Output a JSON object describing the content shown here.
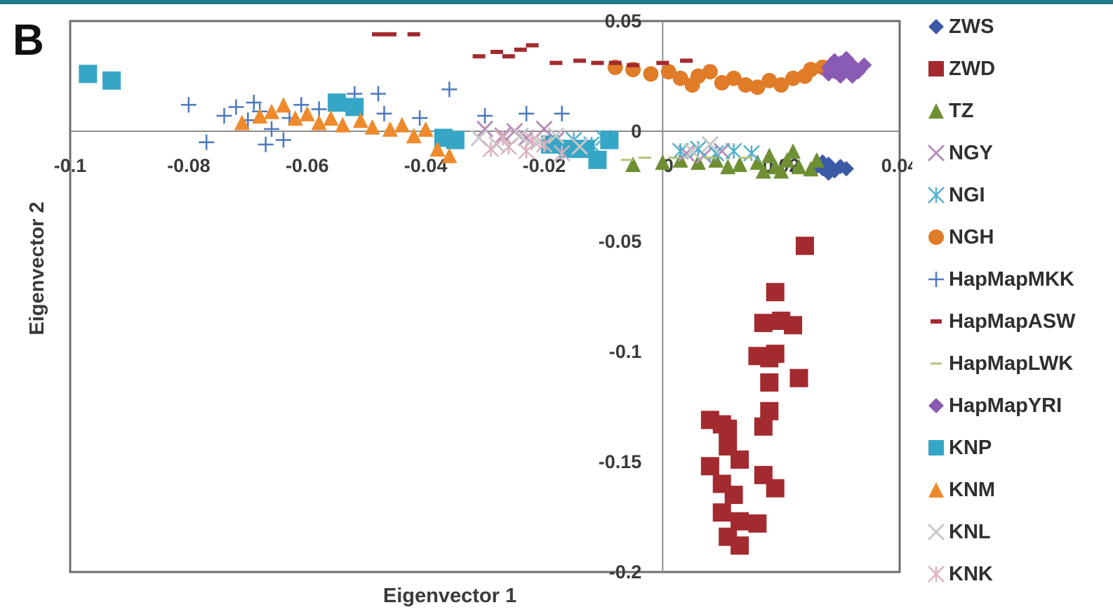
{
  "panel_label": "B",
  "theme": {
    "topbar_color": "#1e7a86",
    "axis_color": "#8c8c8c",
    "frame_color": "#6e6e6e"
  },
  "chart_data": {
    "type": "scatter",
    "title": "",
    "xlabel": "Eigenvector 1",
    "ylabel": "Eigenvector 2",
    "xlim": [
      -0.1,
      0.04
    ],
    "ylim": [
      -0.2,
      0.05
    ],
    "xticks": [
      -0.1,
      -0.08,
      -0.06,
      -0.04,
      -0.02,
      0,
      0.02,
      0.04
    ],
    "xtick_labels": [
      "-0.1",
      "-0.08",
      "-0.06",
      "-0.04",
      "-0.02",
      "0",
      "0.02",
      "0.04"
    ],
    "yticks": [
      0.05,
      0,
      -0.05,
      -0.1,
      -0.15,
      -0.2
    ],
    "ytick_labels": [
      "0.05",
      "0",
      "-0.05",
      "-0.1",
      "-0.15",
      "-0.2"
    ],
    "grid": false,
    "legend_position": "right",
    "series": [
      {
        "name": "ZWS",
        "marker": "diamond",
        "color": "#3b5aa6",
        "points": [
          [
            0.027,
            -0.017
          ],
          [
            0.028,
            -0.015
          ],
          [
            0.029,
            -0.018
          ],
          [
            0.03,
            -0.016
          ],
          [
            0.028,
            -0.019
          ],
          [
            0.026,
            -0.016
          ],
          [
            0.031,
            -0.017
          ],
          [
            0.027,
            -0.014
          ]
        ]
      },
      {
        "name": "ZWD",
        "marker": "square",
        "color": "#a32a2f",
        "points": [
          [
            0.024,
            -0.052
          ],
          [
            0.019,
            -0.073
          ],
          [
            0.017,
            -0.087
          ],
          [
            0.02,
            -0.086
          ],
          [
            0.022,
            -0.088
          ],
          [
            0.016,
            -0.102
          ],
          [
            0.018,
            -0.103
          ],
          [
            0.019,
            -0.101
          ],
          [
            0.023,
            -0.112
          ],
          [
            0.018,
            -0.114
          ],
          [
            0.018,
            -0.127
          ],
          [
            0.017,
            -0.134
          ],
          [
            0.008,
            -0.131
          ],
          [
            0.01,
            -0.133
          ],
          [
            0.011,
            -0.135
          ],
          [
            0.011,
            -0.143
          ],
          [
            0.008,
            -0.152
          ],
          [
            0.013,
            -0.149
          ],
          [
            0.017,
            -0.156
          ],
          [
            0.019,
            -0.162
          ],
          [
            0.01,
            -0.16
          ],
          [
            0.012,
            -0.165
          ],
          [
            0.01,
            -0.173
          ],
          [
            0.013,
            -0.177
          ],
          [
            0.016,
            -0.178
          ],
          [
            0.011,
            -0.184
          ],
          [
            0.013,
            -0.188
          ]
        ]
      },
      {
        "name": "TZ",
        "marker": "triangle",
        "color": "#6e8f32",
        "points": [
          [
            -0.005,
            -0.015
          ],
          [
            0.0,
            -0.014
          ],
          [
            0.003,
            -0.013
          ],
          [
            0.006,
            -0.014
          ],
          [
            0.009,
            -0.013
          ],
          [
            0.011,
            -0.016
          ],
          [
            0.013,
            -0.015
          ],
          [
            0.016,
            -0.014
          ],
          [
            0.018,
            -0.011
          ],
          [
            0.019,
            -0.016
          ],
          [
            0.021,
            -0.013
          ],
          [
            0.022,
            -0.009
          ],
          [
            0.023,
            -0.016
          ],
          [
            0.025,
            -0.017
          ],
          [
            0.026,
            -0.013
          ],
          [
            0.02,
            -0.018
          ],
          [
            0.017,
            -0.018
          ]
        ]
      },
      {
        "name": "NGY",
        "marker": "x",
        "color": "#b58fb8",
        "points": [
          [
            -0.03,
            0.001
          ],
          [
            -0.027,
            -0.002
          ],
          [
            -0.025,
            0.0
          ],
          [
            -0.023,
            -0.003
          ],
          [
            -0.02,
            0.001
          ],
          [
            -0.018,
            -0.004
          ],
          [
            0.004,
            -0.01
          ],
          [
            0.007,
            -0.011
          ],
          [
            0.01,
            -0.009
          ]
        ]
      },
      {
        "name": "NGI",
        "marker": "asterisk",
        "color": "#53b0cf",
        "points": [
          [
            -0.015,
            -0.004
          ],
          [
            -0.012,
            -0.006
          ],
          [
            -0.01,
            -0.003
          ],
          [
            0.003,
            -0.009
          ],
          [
            0.006,
            -0.008
          ],
          [
            0.009,
            -0.01
          ],
          [
            0.012,
            -0.009
          ],
          [
            0.015,
            -0.01
          ]
        ]
      },
      {
        "name": "NGH",
        "marker": "circle",
        "color": "#e07b28",
        "points": [
          [
            -0.005,
            0.028
          ],
          [
            -0.002,
            0.026
          ],
          [
            0.001,
            0.027
          ],
          [
            0.003,
            0.024
          ],
          [
            0.006,
            0.025
          ],
          [
            0.008,
            0.027
          ],
          [
            0.01,
            0.022
          ],
          [
            0.012,
            0.024
          ],
          [
            0.014,
            0.021
          ],
          [
            0.016,
            0.02
          ],
          [
            0.018,
            0.023
          ],
          [
            0.02,
            0.021
          ],
          [
            0.022,
            0.024
          ],
          [
            0.024,
            0.025
          ],
          [
            0.025,
            0.028
          ],
          [
            0.027,
            0.029
          ],
          [
            -0.008,
            0.029
          ],
          [
            0.005,
            0.021
          ]
        ]
      },
      {
        "name": "HapMapMKK",
        "marker": "plus",
        "color": "#4a78bd",
        "points": [
          [
            -0.08,
            0.012
          ],
          [
            -0.077,
            -0.005
          ],
          [
            -0.074,
            0.007
          ],
          [
            -0.072,
            0.011
          ],
          [
            -0.07,
            0.005
          ],
          [
            -0.069,
            0.013
          ],
          [
            -0.068,
            0.009
          ],
          [
            -0.066,
            0.001
          ],
          [
            -0.063,
            0.006
          ],
          [
            -0.061,
            0.012
          ],
          [
            -0.058,
            0.01
          ],
          [
            -0.055,
            0.013
          ],
          [
            -0.052,
            0.017
          ],
          [
            -0.048,
            0.017
          ],
          [
            -0.047,
            0.008
          ],
          [
            -0.041,
            0.006
          ],
          [
            -0.036,
            0.019
          ],
          [
            -0.03,
            0.007
          ],
          [
            -0.023,
            0.008
          ],
          [
            -0.017,
            0.008
          ],
          [
            -0.067,
            -0.006
          ],
          [
            -0.064,
            -0.004
          ]
        ]
      },
      {
        "name": "HapMapASW",
        "marker": "dash",
        "color": "#a32a2f",
        "points": [
          [
            -0.048,
            0.044
          ],
          [
            -0.046,
            0.044
          ],
          [
            -0.042,
            0.044
          ],
          [
            -0.031,
            0.034
          ],
          [
            -0.028,
            0.036
          ],
          [
            -0.026,
            0.034
          ],
          [
            -0.024,
            0.037
          ],
          [
            -0.022,
            0.039
          ],
          [
            -0.018,
            0.031
          ],
          [
            -0.014,
            0.032
          ],
          [
            -0.011,
            0.031
          ],
          [
            -0.008,
            0.031
          ],
          [
            -0.005,
            0.03
          ],
          [
            0.0,
            0.031
          ],
          [
            0.004,
            0.032
          ]
        ]
      },
      {
        "name": "HapMapLWK",
        "marker": "hline",
        "color": "#b5c27a",
        "points": [
          [
            -0.006,
            -0.013
          ],
          [
            -0.003,
            -0.012
          ],
          [
            0.002,
            -0.012
          ],
          [
            0.008,
            -0.012
          ],
          [
            0.014,
            -0.012
          ]
        ]
      },
      {
        "name": "HapMapYRI",
        "marker": "diamond",
        "color": "#8a5bb5",
        "points": [
          [
            0.028,
            0.029
          ],
          [
            0.029,
            0.027
          ],
          [
            0.03,
            0.031
          ],
          [
            0.031,
            0.028
          ],
          [
            0.032,
            0.03
          ],
          [
            0.033,
            0.027
          ],
          [
            0.031,
            0.033
          ],
          [
            0.03,
            0.025
          ],
          [
            0.032,
            0.025
          ],
          [
            0.029,
            0.032
          ],
          [
            0.034,
            0.03
          ],
          [
            0.028,
            0.026
          ]
        ]
      },
      {
        "name": "KNP",
        "marker": "square",
        "color": "#36a6c7",
        "points": [
          [
            -0.097,
            0.026
          ],
          [
            -0.093,
            0.023
          ],
          [
            -0.055,
            0.013
          ],
          [
            -0.052,
            0.011
          ],
          [
            -0.037,
            -0.003
          ],
          [
            -0.035,
            -0.004
          ],
          [
            -0.019,
            -0.006
          ],
          [
            -0.016,
            -0.008
          ],
          [
            -0.013,
            -0.008
          ],
          [
            -0.011,
            -0.013
          ],
          [
            -0.009,
            -0.004
          ]
        ]
      },
      {
        "name": "KNM",
        "marker": "triangle",
        "color": "#ee8a2b",
        "points": [
          [
            -0.071,
            0.004
          ],
          [
            -0.068,
            0.007
          ],
          [
            -0.066,
            0.009
          ],
          [
            -0.064,
            0.012
          ],
          [
            -0.062,
            0.006
          ],
          [
            -0.06,
            0.008
          ],
          [
            -0.058,
            0.004
          ],
          [
            -0.056,
            0.006
          ],
          [
            -0.054,
            0.003
          ],
          [
            -0.051,
            0.005
          ],
          [
            -0.049,
            0.002
          ],
          [
            -0.046,
            0.001
          ],
          [
            -0.044,
            0.003
          ],
          [
            -0.042,
            -0.002
          ],
          [
            -0.04,
            0.001
          ],
          [
            -0.038,
            -0.008
          ],
          [
            -0.036,
            -0.011
          ]
        ]
      },
      {
        "name": "KNL",
        "marker": "x",
        "color": "#c8c8c8",
        "points": [
          [
            -0.031,
            -0.003
          ],
          [
            -0.028,
            -0.006
          ],
          [
            -0.024,
            -0.002
          ],
          [
            -0.021,
            -0.005
          ],
          [
            -0.018,
            -0.002
          ],
          [
            -0.014,
            -0.007
          ],
          [
            0.005,
            -0.009
          ],
          [
            0.008,
            -0.006
          ]
        ]
      },
      {
        "name": "KNK",
        "marker": "asterisk",
        "color": "#d9b3be",
        "points": [
          [
            -0.029,
            -0.008
          ],
          [
            -0.026,
            -0.007
          ],
          [
            -0.023,
            -0.009
          ],
          [
            -0.02,
            -0.006
          ],
          [
            -0.017,
            -0.01
          ],
          [
            -0.027,
            -0.003
          ],
          [
            -0.022,
            -0.004
          ]
        ]
      }
    ]
  }
}
